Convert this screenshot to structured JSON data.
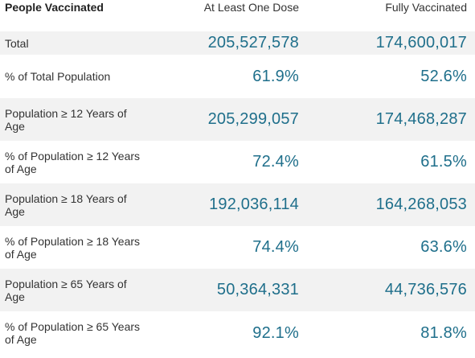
{
  "header": {
    "label": "People Vaccinated",
    "col_one": "At Least One Dose",
    "col_full": "Fully Vaccinated"
  },
  "rows": [
    {
      "label": "Total",
      "one_dose": "205,527,578",
      "fully": "174,600,017"
    },
    {
      "label": "% of Total Population",
      "one_dose": "61.9%",
      "fully": "52.6%"
    },
    {
      "label": "Population ≥ 12 Years of Age",
      "one_dose": "205,299,057",
      "fully": "174,468,287"
    },
    {
      "label": "% of Population ≥ 12 Years of Age",
      "one_dose": "72.4%",
      "fully": "61.5%"
    },
    {
      "label": "Population ≥ 18 Years of Age",
      "one_dose": "192,036,114",
      "fully": "164,268,053"
    },
    {
      "label": "% of Population ≥ 18 Years of Age",
      "one_dose": "74.4%",
      "fully": "63.6%"
    },
    {
      "label": "Population ≥ 65 Years of Age",
      "one_dose": "50,364,331",
      "fully": "44,736,576"
    },
    {
      "label": "% of Population ≥ 65 Years of Age",
      "one_dose": "92.1%",
      "fully": "81.8%"
    }
  ],
  "colors": {
    "number_text": "#1f6f8b",
    "row_shade": "#f2f2f2",
    "label_text": "#333333"
  }
}
